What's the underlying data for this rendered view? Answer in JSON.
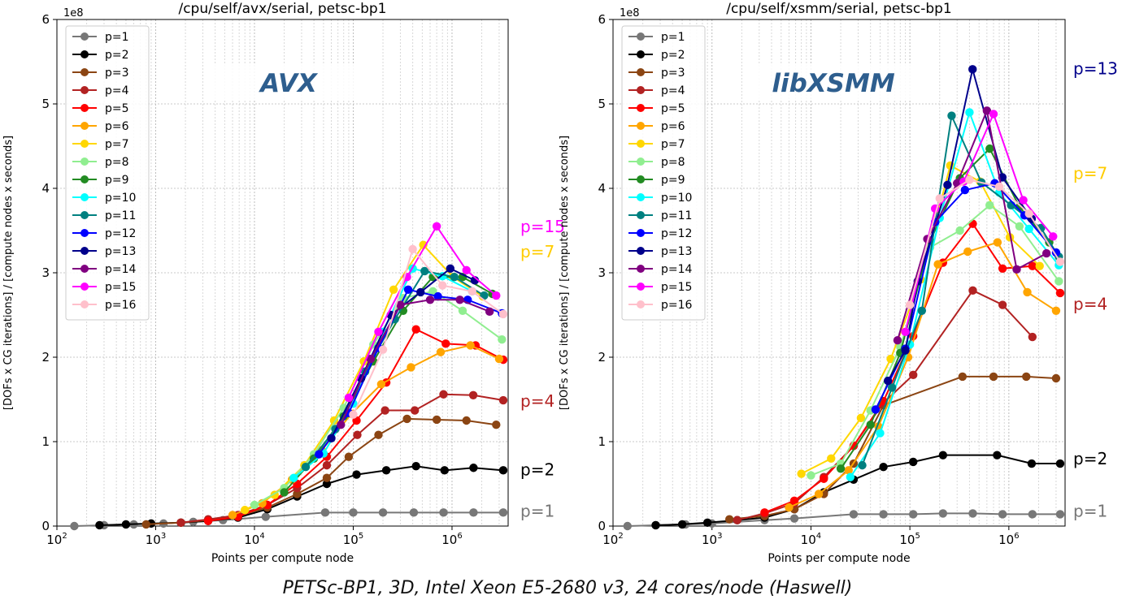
{
  "caption": "PETSc-BP1, 3D, Intel Xeon E5-2680 v3, 24 cores/node (Haswell)",
  "chart_data": [
    {
      "type": "line",
      "title": "/cpu/self/avx/serial, petsc-bp1",
      "overlay_label": "AVX",
      "xlabel": "Points per compute node",
      "ylabel": "[DOFs x CG iterations] / [compute nodes x seconds]",
      "y_multiplier": "1e8",
      "xscale": "log",
      "xlim": [
        100,
        3700000
      ],
      "ylim": [
        0,
        6
      ],
      "xticks": [
        "10^2",
        "10^3",
        "10^4",
        "10^5",
        "10^6"
      ],
      "yticks": [
        "0",
        "1",
        "2",
        "3",
        "4",
        "5",
        "6"
      ],
      "grid": true,
      "legend_position": "top-left",
      "annotations": [
        {
          "text": "p=15",
          "color": "#ff00ff",
          "y": 3.55
        },
        {
          "text": "p=7",
          "color": "#ffcc00",
          "y": 3.25
        },
        {
          "text": "p=4",
          "color": "#b22222",
          "y": 1.48
        },
        {
          "text": "p=2",
          "color": "#000000",
          "y": 0.67
        },
        {
          "text": "p=1",
          "color": "#777777",
          "y": 0.18
        }
      ],
      "series": [
        {
          "name": "p=1",
          "color": "#777777",
          "x": [
            150,
            300,
            600,
            1200,
            2400,
            4800,
            13000,
            52000,
            100000,
            200000,
            410000,
            820000,
            1650000,
            3300000
          ],
          "y": [
            0.0,
            0.01,
            0.02,
            0.03,
            0.05,
            0.07,
            0.11,
            0.16,
            0.16,
            0.16,
            0.16,
            0.16,
            0.16,
            0.16
          ]
        },
        {
          "name": "p=2",
          "color": "#000000",
          "x": [
            270,
            500,
            900,
            1800,
            3400,
            6800,
            13500,
            27000,
            54000,
            108000,
            216000,
            432000,
            840000,
            1650000,
            3300000
          ],
          "y": [
            0.01,
            0.02,
            0.03,
            0.04,
            0.06,
            0.1,
            0.2,
            0.35,
            0.5,
            0.61,
            0.66,
            0.71,
            0.66,
            0.69,
            0.66
          ]
        },
        {
          "name": "p=3",
          "color": "#8b4513",
          "x": [
            800,
            1800,
            3400,
            6800,
            13500,
            27000,
            54000,
            90000,
            180000,
            350000,
            700000,
            1400000,
            2800000
          ],
          "y": [
            0.02,
            0.04,
            0.07,
            0.12,
            0.22,
            0.38,
            0.57,
            0.82,
            1.08,
            1.27,
            1.26,
            1.25,
            1.2
          ]
        },
        {
          "name": "p=4",
          "color": "#b22222",
          "x": [
            1800,
            3400,
            6800,
            13500,
            27000,
            54000,
            110000,
            210000,
            420000,
            820000,
            1640000,
            3300000
          ],
          "y": [
            0.04,
            0.08,
            0.13,
            0.25,
            0.45,
            0.72,
            1.08,
            1.37,
            1.37,
            1.56,
            1.55,
            1.49
          ]
        },
        {
          "name": "p=5",
          "color": "#ff0000",
          "x": [
            3400,
            6800,
            13500,
            27000,
            54000,
            108000,
            216000,
            432000,
            864000,
            1730000,
            3300000
          ],
          "y": [
            0.06,
            0.11,
            0.25,
            0.5,
            0.82,
            1.25,
            1.7,
            2.33,
            2.16,
            2.14,
            1.97
          ]
        },
        {
          "name": "p=6",
          "color": "#ffa500",
          "x": [
            6000,
            12000,
            24000,
            48000,
            96000,
            192000,
            384000,
            768000,
            1536000,
            3000000
          ],
          "y": [
            0.13,
            0.27,
            0.55,
            0.9,
            1.33,
            1.68,
            1.88,
            2.06,
            2.14,
            1.98
          ]
        },
        {
          "name": "p=7",
          "color": "#ffd700",
          "x": [
            8000,
            16000,
            32000,
            64000,
            128000,
            256000,
            512000,
            1024000,
            2048000
          ],
          "y": [
            0.19,
            0.37,
            0.72,
            1.25,
            1.95,
            2.8,
            3.33,
            2.95,
            2.72
          ]
        },
        {
          "name": "p=8",
          "color": "#90ee90",
          "x": [
            10000,
            20000,
            40000,
            80000,
            160000,
            320000,
            640000,
            1280000,
            3200000
          ],
          "y": [
            0.25,
            0.45,
            0.85,
            1.4,
            2.15,
            2.7,
            2.78,
            2.55,
            2.21
          ]
        },
        {
          "name": "p=9",
          "color": "#228b22",
          "x": [
            20000,
            40000,
            80000,
            160000,
            320000,
            640000,
            1280000,
            2560000
          ],
          "y": [
            0.4,
            0.8,
            1.3,
            1.95,
            2.55,
            2.95,
            2.95,
            2.75
          ]
        },
        {
          "name": "p=10",
          "color": "#00ffff",
          "x": [
            25000,
            50000,
            100000,
            200000,
            400000,
            800000,
            1600000
          ],
          "y": [
            0.57,
            0.86,
            1.45,
            2.3,
            3.05,
            2.96,
            2.78
          ]
        },
        {
          "name": "p=11",
          "color": "#008080",
          "x": [
            33000,
            66000,
            132000,
            264000,
            528000,
            1056000,
            2112000
          ],
          "y": [
            0.7,
            1.15,
            1.83,
            2.45,
            3.02,
            2.95,
            2.73
          ]
        },
        {
          "name": "p=12",
          "color": "#0000ff",
          "x": [
            45000,
            90000,
            180000,
            360000,
            720000,
            1440000,
            3200000
          ],
          "y": [
            0.85,
            1.34,
            2.11,
            2.8,
            2.72,
            2.68,
            2.52
          ]
        },
        {
          "name": "p=13",
          "color": "#00008b",
          "x": [
            60000,
            120000,
            240000,
            480000,
            960000,
            1700000
          ],
          "y": [
            1.04,
            1.75,
            2.5,
            2.77,
            3.05,
            2.91
          ]
        },
        {
          "name": "p=14",
          "color": "#800080",
          "x": [
            75000,
            150000,
            300000,
            600000,
            1200000,
            2400000
          ],
          "y": [
            1.2,
            1.98,
            2.62,
            2.68,
            2.68,
            2.54
          ]
        },
        {
          "name": "p=15",
          "color": "#ff00ff",
          "x": [
            90000,
            180000,
            350000,
            700000,
            1400000,
            2800000
          ],
          "y": [
            1.52,
            2.3,
            2.95,
            3.55,
            3.03,
            2.73
          ]
        },
        {
          "name": "p=16",
          "color": "#ffc0cb",
          "x": [
            100000,
            200000,
            400000,
            800000,
            1600000,
            3300000
          ],
          "y": [
            1.32,
            2.09,
            3.28,
            2.85,
            2.78,
            2.51
          ]
        }
      ]
    },
    {
      "type": "line",
      "title": "/cpu/self/xsmm/serial, petsc-bp1",
      "overlay_label": "libXSMM",
      "xlabel": "Points per compute node",
      "ylabel": "[DOFs x CG iterations] / [compute nodes x seconds]",
      "y_multiplier": "1e8",
      "xscale": "log",
      "xlim": [
        100,
        3700000
      ],
      "ylim": [
        0,
        6
      ],
      "xticks": [
        "10^2",
        "10^3",
        "10^4",
        "10^5",
        "10^6"
      ],
      "yticks": [
        "0",
        "1",
        "2",
        "3",
        "4",
        "5",
        "6"
      ],
      "grid": true,
      "legend_position": "top-left",
      "annotations": [
        {
          "text": "p=13",
          "color": "#00008b",
          "y": 5.42
        },
        {
          "text": "p=7",
          "color": "#ffcc00",
          "y": 4.18
        },
        {
          "text": "p=4",
          "color": "#b22222",
          "y": 2.63
        },
        {
          "text": "p=2",
          "color": "#000000",
          "y": 0.8
        },
        {
          "text": "p=1",
          "color": "#777777",
          "y": 0.18
        }
      ],
      "series": [
        {
          "name": "p=1",
          "color": "#777777",
          "x": [
            140,
            270,
            540,
            1000,
            3400,
            6800,
            27000,
            54000,
            108000,
            216000,
            432000,
            864000,
            1730000,
            3300000
          ],
          "y": [
            0.0,
            0.01,
            0.02,
            0.03,
            0.07,
            0.09,
            0.14,
            0.14,
            0.14,
            0.15,
            0.15,
            0.14,
            0.14,
            0.14
          ]
        },
        {
          "name": "p=2",
          "color": "#000000",
          "x": [
            270,
            500,
            900,
            1800,
            3400,
            6800,
            13500,
            27000,
            54000,
            108000,
            216000,
            760000,
            1700000,
            3300000
          ],
          "y": [
            0.01,
            0.02,
            0.04,
            0.07,
            0.1,
            0.2,
            0.4,
            0.55,
            0.7,
            0.76,
            0.84,
            0.84,
            0.74,
            0.74
          ]
        },
        {
          "name": "p=3",
          "color": "#8b4513",
          "x": [
            1500,
            3400,
            6800,
            13500,
            27000,
            54000,
            340000,
            700000,
            1500000,
            3000000
          ],
          "y": [
            0.08,
            0.12,
            0.2,
            0.38,
            0.74,
            1.43,
            1.77,
            1.77,
            1.77,
            1.75
          ]
        },
        {
          "name": "p=4",
          "color": "#b22222",
          "x": [
            1800,
            3400,
            6800,
            13500,
            27000,
            54000,
            108000,
            432000,
            864000,
            1730000
          ],
          "y": [
            0.07,
            0.15,
            0.27,
            0.58,
            0.95,
            1.46,
            1.79,
            2.79,
            2.62,
            2.24
          ]
        },
        {
          "name": "p=5",
          "color": "#ff0000",
          "x": [
            3400,
            6800,
            13500,
            27000,
            54000,
            108000,
            216000,
            432000,
            864000,
            1730000,
            3300000
          ],
          "y": [
            0.16,
            0.3,
            0.56,
            0.95,
            1.48,
            2.25,
            3.12,
            3.58,
            3.05,
            3.08,
            2.76
          ]
        },
        {
          "name": "p=6",
          "color": "#ffa500",
          "x": [
            6000,
            12000,
            24000,
            48000,
            96000,
            192000,
            384000,
            768000,
            1536000,
            3000000
          ],
          "y": [
            0.22,
            0.38,
            0.66,
            1.18,
            2.0,
            3.1,
            3.25,
            3.36,
            2.77,
            2.55
          ]
        },
        {
          "name": "p=7",
          "color": "#ffd700",
          "x": [
            8000,
            16000,
            32000,
            64000,
            128000,
            256000,
            512000,
            1024000,
            2048000
          ],
          "y": [
            0.62,
            0.8,
            1.28,
            1.98,
            2.92,
            4.27,
            4.08,
            3.42,
            3.08
          ]
        },
        {
          "name": "p=8",
          "color": "#90ee90",
          "x": [
            10000,
            20000,
            40000,
            80000,
            160000,
            320000,
            640000,
            1280000,
            3200000
          ],
          "y": [
            0.6,
            0.74,
            1.37,
            2.12,
            3.3,
            3.5,
            3.8,
            3.55,
            2.9
          ]
        },
        {
          "name": "p=9",
          "color": "#228b22",
          "x": [
            20000,
            40000,
            80000,
            160000,
            320000,
            640000,
            1280000,
            2560000
          ],
          "y": [
            0.68,
            1.2,
            2.05,
            3.38,
            4.12,
            4.47,
            3.78,
            3.36
          ]
        },
        {
          "name": "p=10",
          "color": "#00ffff",
          "x": [
            25000,
            50000,
            100000,
            200000,
            400000,
            800000,
            1600000,
            3200000
          ],
          "y": [
            0.58,
            1.1,
            2.15,
            3.65,
            4.9,
            3.95,
            3.52,
            3.09
          ]
        },
        {
          "name": "p=11",
          "color": "#008080",
          "x": [
            33000,
            66000,
            132000,
            264000,
            528000,
            1056000,
            2112000,
            3200000
          ],
          "y": [
            0.72,
            1.64,
            2.55,
            4.86,
            4.07,
            3.8,
            3.53,
            3.19
          ]
        },
        {
          "name": "p=12",
          "color": "#0000ff",
          "x": [
            45000,
            90000,
            180000,
            360000,
            720000,
            1440000,
            3000000
          ],
          "y": [
            1.38,
            2.1,
            3.6,
            3.98,
            4.06,
            3.68,
            3.24
          ]
        },
        {
          "name": "p=13",
          "color": "#00008b",
          "x": [
            60000,
            90000,
            120000,
            240000,
            430000,
            860000,
            1700000
          ],
          "y": [
            1.72,
            2.08,
            2.9,
            4.04,
            5.41,
            4.13,
            3.64
          ]
        },
        {
          "name": "p=14",
          "color": "#800080",
          "x": [
            75000,
            150000,
            300000,
            600000,
            1200000,
            2400000
          ],
          "y": [
            2.2,
            3.4,
            4.06,
            4.92,
            3.04,
            3.23
          ]
        },
        {
          "name": "p=15",
          "color": "#ff00ff",
          "x": [
            90000,
            180000,
            350000,
            700000,
            1400000,
            2800000
          ],
          "y": [
            2.3,
            3.76,
            4.08,
            4.88,
            3.86,
            3.43
          ]
        },
        {
          "name": "p=16",
          "color": "#ffc0cb",
          "x": [
            100000,
            200000,
            400000,
            800000,
            1600000,
            3300000
          ],
          "y": [
            2.62,
            3.88,
            4.1,
            4.02,
            3.7,
            3.13
          ]
        }
      ]
    }
  ]
}
